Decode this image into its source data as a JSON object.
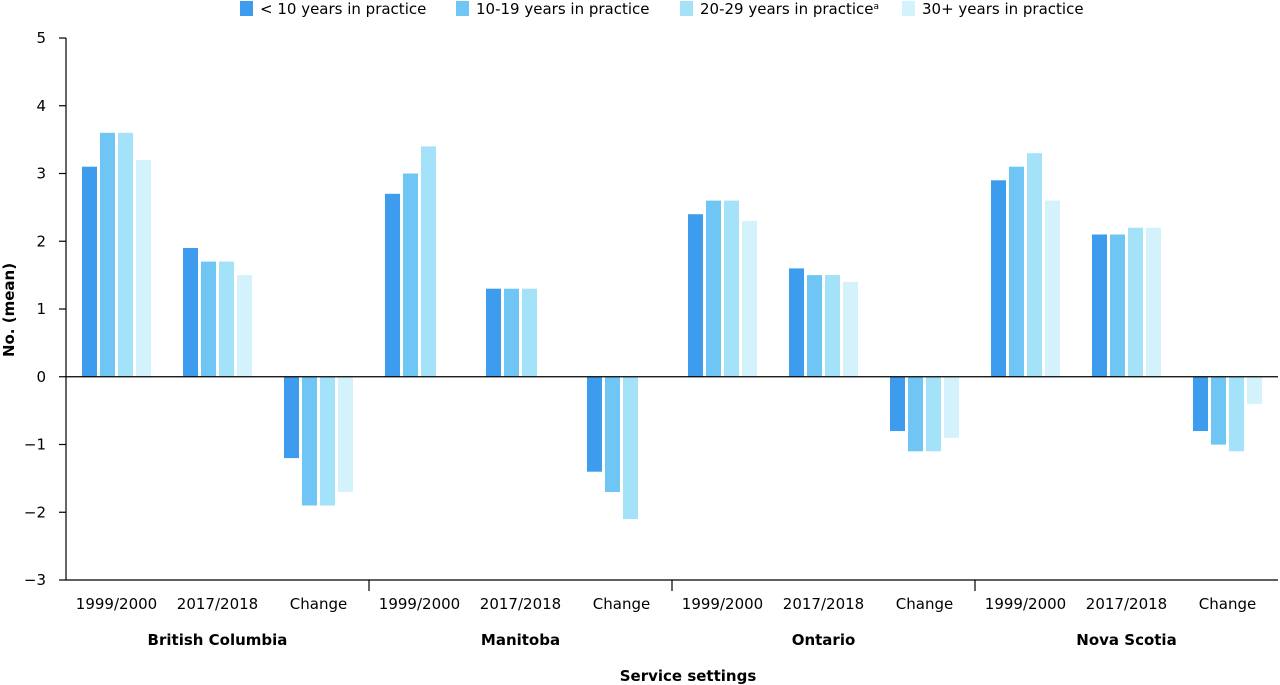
{
  "chart_data": {
    "type": "bar",
    "title": "",
    "xlabel": "Service settings",
    "ylabel": "No. (mean)",
    "ylim": [
      -3,
      5
    ],
    "yticks": [
      "5",
      "4",
      "3",
      "2",
      "1",
      "0",
      "−1",
      "−2",
      "−3"
    ],
    "ytick_values": [
      5,
      4,
      3,
      2,
      1,
      0,
      -1,
      -2,
      -3
    ],
    "legend_position": "top",
    "groups": [
      "British Columbia",
      "Manitoba",
      "Ontario",
      "Nova Scotia"
    ],
    "subcategories": [
      "1999/2000",
      "2017/2018",
      "Change"
    ],
    "series": [
      {
        "name": "< 10 years in practice",
        "legend_label": "< 10 years in practice",
        "legend_sup": "",
        "color": "#3d9ced",
        "values": [
          3.1,
          1.9,
          -1.2,
          2.7,
          1.3,
          -1.4,
          2.4,
          1.6,
          -0.8,
          2.9,
          2.1,
          -0.8
        ]
      },
      {
        "name": "10-19 years in practice",
        "legend_label": "10-19 years in practice",
        "legend_sup": "",
        "color": "#6fc6f5",
        "values": [
          3.6,
          1.7,
          -1.9,
          3.0,
          1.3,
          -1.7,
          2.6,
          1.5,
          -1.1,
          3.1,
          2.1,
          -1.0
        ]
      },
      {
        "name": "20-29 years in practice",
        "legend_label": "20-29 years in practice",
        "legend_sup": "a",
        "color": "#a3e2f8",
        "values": [
          3.6,
          1.7,
          -1.9,
          3.4,
          1.3,
          -2.1,
          2.6,
          1.5,
          -1.1,
          3.3,
          2.2,
          -1.1
        ]
      },
      {
        "name": "30+ years in practice",
        "legend_label": "30+ years in practice",
        "legend_sup": "",
        "color": "#d3f2fb",
        "values": [
          3.2,
          1.5,
          -1.7,
          null,
          null,
          null,
          2.3,
          1.4,
          -0.9,
          2.6,
          2.2,
          -0.4
        ]
      }
    ]
  }
}
